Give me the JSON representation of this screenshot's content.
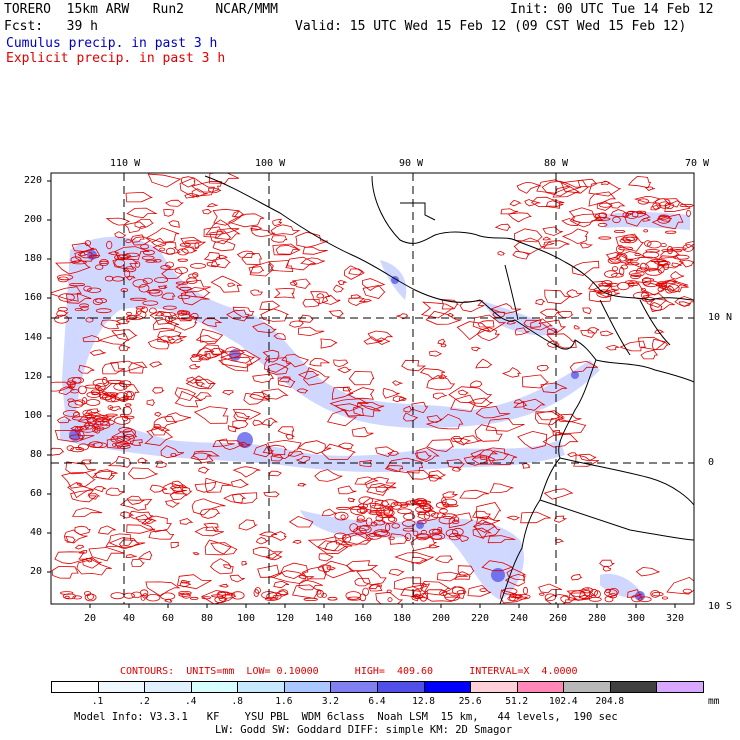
{
  "header": {
    "model": "TORERO  15km ARW   Run2    NCAR/MMM",
    "init": "Init: 00 UTC Tue 14 Feb 12",
    "fcst": "Fcst:   39 h",
    "valid": "Valid: 15 UTC Wed 15 Feb 12 (09 CST Wed 15 Feb 12)",
    "field_blue": "Cumulus precip. in past 3 h",
    "field_red": "Explicit precip. in past 3 h"
  },
  "axes": {
    "top": [
      "110 W",
      "100 W",
      "90 W",
      "80 W",
      "70 W"
    ],
    "left": [
      "220",
      "200",
      "180",
      "160",
      "140",
      "120",
      "100",
      "80",
      "60",
      "40",
      "20"
    ],
    "bottom": [
      "20",
      "40",
      "60",
      "80",
      "100",
      "120",
      "140",
      "160",
      "180",
      "200",
      "220",
      "240",
      "260",
      "280",
      "300",
      "320"
    ],
    "right": [
      "10 N",
      "0",
      "10 S"
    ]
  },
  "contours": {
    "label": "CONTOURS:  UNITS=mm  LOW= 0.10000      HIGH=  409.60      INTERVAL=X  4.0000"
  },
  "colorbar": {
    "colors": [
      "#ffffff",
      "#f0f8ff",
      "#e0f0ff",
      "#d8ffff",
      "#c8e8ff",
      "#aac8ff",
      "#8080f0",
      "#5050e8",
      "#0000ff",
      "#ffd0d8",
      "#ff88b8",
      "#b8b8b8",
      "#404040",
      "#d8a8ff"
    ],
    "labels": [
      ".1",
      ".2",
      ".4",
      ".8",
      "1.6",
      "3.2",
      "6.4",
      "12.8",
      "25.6",
      "51.2",
      "102.4",
      "204.8"
    ],
    "unit": "mm"
  },
  "model_info": {
    "line1": "Model Info: V3.3.1   KF    YSU PBL  WDM 6class  Noah LSM  15 km,   44 levels,  190 sec",
    "line2": "LW: Godd SW: Goddard DIFF: simple KM: 2D Smagor"
  }
}
